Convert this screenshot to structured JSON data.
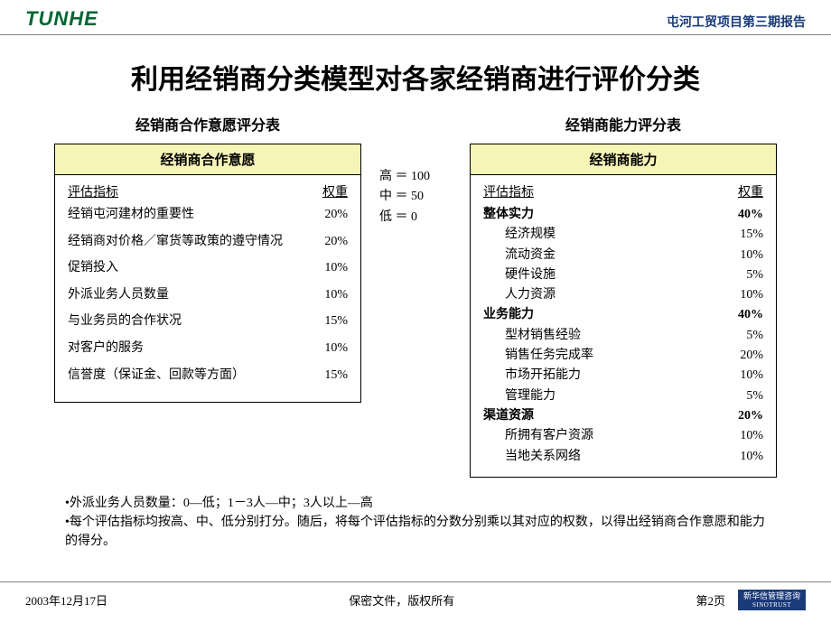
{
  "header": {
    "logo_text": "TUNHE",
    "right_text": "屯河工贸项目第三期报告"
  },
  "main_title": "利用经销商分类模型对各家经销商进行评价分类",
  "colors": {
    "panel_header_bg": "#f5f5b8",
    "logo_color": "#006633",
    "header_right_color": "#1a3a7a",
    "border_color": "#000000"
  },
  "left_panel": {
    "title": "经销商合作意愿评分表",
    "header": "经销商合作意愿",
    "col_label": "评估指标",
    "col_weight": "权重",
    "rows": [
      {
        "label": "经销屯河建材的重要性",
        "weight": "20%"
      },
      {
        "label": "经销商对价格／窜货等政策的遵守情况",
        "weight": "20%"
      },
      {
        "label": "促销投入",
        "weight": "10%"
      },
      {
        "label": "外派业务人员数量",
        "weight": "10%"
      },
      {
        "label": "与业务员的合作状况",
        "weight": "15%"
      },
      {
        "label": "对客户的服务",
        "weight": "10%"
      },
      {
        "label": "信誉度（保证金、回款等方面）",
        "weight": "15%"
      }
    ]
  },
  "legend": {
    "high": "高 ＝ 100",
    "mid": "中 ＝ 50",
    "low": "低 ＝ 0"
  },
  "right_panel": {
    "title": "经销商能力评分表",
    "header": "经销商能力",
    "col_label": "评估指标",
    "col_weight": "权重",
    "items": [
      {
        "label": "整体实力",
        "weight": "40%",
        "cat": true
      },
      {
        "label": "经济规模",
        "weight": "15%",
        "sub": true
      },
      {
        "label": "流动资金",
        "weight": "10%",
        "sub": true
      },
      {
        "label": "硬件设施",
        "weight": "5%",
        "sub": true
      },
      {
        "label": "人力资源",
        "weight": "10%",
        "sub": true
      },
      {
        "label": "业务能力",
        "weight": "40%",
        "cat": true
      },
      {
        "label": "型材销售经验",
        "weight": "5%",
        "sub": true
      },
      {
        "label": "销售任务完成率",
        "weight": "20%",
        "sub": true
      },
      {
        "label": "市场开拓能力",
        "weight": "10%",
        "sub": true
      },
      {
        "label": "管理能力",
        "weight": "5%",
        "sub": true
      },
      {
        "label": "渠道资源",
        "weight": "20%",
        "cat": true
      },
      {
        "label": "所拥有客户资源",
        "weight": "10%",
        "sub": true
      },
      {
        "label": "当地关系网络",
        "weight": "10%",
        "sub": true
      }
    ]
  },
  "notes": {
    "line1": "•外派业务人员数量：0—低；1－3人—中；3人以上—高",
    "line2": "•每个评估指标均按高、中、低分别打分。随后，将每个评估指标的分数分别乘以其对应的权数，以得出经销商合作意愿和能力的得分。"
  },
  "footer": {
    "date": "2003年12月17日",
    "center": "保密文件，版权所有",
    "page": "第2页",
    "logo_cn": "新华信管理咨询",
    "logo_en": "SINOTRUST"
  }
}
